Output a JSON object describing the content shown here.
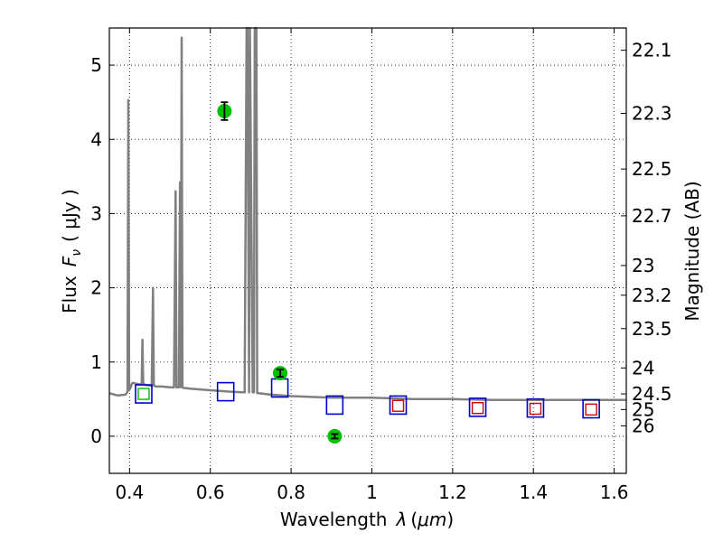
{
  "chart_data": {
    "type": "line",
    "title": "",
    "xlabel": "Wavelength",
    "xlabel_symbol": "λ",
    "xlabel_unit_open": "(",
    "xlabel_unit": "μm",
    "xlabel_unit_close": ")",
    "ylabel": "Flux",
    "ylabel_symbol": "F",
    "ylabel_subscript": "ν",
    "ylabel_unit": "( μJy )",
    "y2label": "Magnitude (AB)",
    "xlim": [
      0.35,
      1.63
    ],
    "ylim": [
      -0.5,
      5.5
    ],
    "x_ticks": [
      "0.4",
      "0.6",
      "0.8",
      "1",
      "1.2",
      "1.4",
      "1.6"
    ],
    "x_tick_values": [
      0.4,
      0.6,
      0.8,
      1.0,
      1.2,
      1.4,
      1.6
    ],
    "y_ticks": [
      "0",
      "1",
      "2",
      "3",
      "4",
      "5"
    ],
    "y_tick_values": [
      0,
      1,
      2,
      3,
      4,
      5
    ],
    "y2_ticks": [
      "22.1",
      "22.3",
      "22.5",
      "22.7",
      "23",
      "23.2",
      "23.5",
      "24",
      "24.5",
      "25",
      "26"
    ],
    "y2_tick_flux": [
      5.2,
      4.35,
      3.6,
      2.97,
      2.3,
      1.9,
      1.45,
      0.92,
      0.57,
      0.36,
      0.14
    ],
    "grid": true,
    "colors": {
      "model": "#808080",
      "observed_points": "#00c000",
      "model_boxes": "#0000cc",
      "red_boxes": "#cc0000",
      "green_box": "#00c000",
      "errorbar": "#000000"
    },
    "series": [
      {
        "kind": "model_spectrum",
        "x": [
          0.35,
          0.37,
          0.39,
          0.395,
          0.397,
          0.399,
          0.403,
          0.405,
          0.408,
          0.415,
          0.425,
          0.43,
          0.432,
          0.434,
          0.436,
          0.44,
          0.455,
          0.458,
          0.46,
          0.462,
          0.465,
          0.48,
          0.5,
          0.51,
          0.514,
          0.516,
          0.518,
          0.522,
          0.525,
          0.527,
          0.529,
          0.531,
          0.533,
          0.536,
          0.55,
          0.6,
          0.65,
          0.685,
          0.69,
          0.692,
          0.696,
          0.698,
          0.705,
          0.708,
          0.71,
          0.714,
          0.716,
          0.72,
          0.75,
          0.8,
          0.85,
          0.9,
          0.95,
          1.0,
          1.05,
          1.1,
          1.2,
          1.3,
          1.4,
          1.5,
          1.63
        ],
        "y": [
          0.58,
          0.55,
          0.56,
          0.6,
          4.53,
          0.62,
          0.66,
          0.7,
          0.72,
          0.71,
          0.7,
          0.7,
          1.3,
          0.7,
          0.7,
          0.69,
          0.68,
          2.0,
          0.68,
          0.68,
          0.67,
          0.67,
          0.66,
          0.66,
          3.3,
          0.66,
          0.66,
          0.66,
          3.42,
          0.66,
          5.37,
          0.66,
          0.65,
          0.65,
          0.64,
          0.62,
          0.6,
          0.59,
          5.5,
          5.5,
          0.59,
          5.5,
          0.59,
          0.59,
          5.5,
          5.5,
          0.58,
          0.58,
          0.56,
          0.54,
          0.53,
          0.52,
          0.52,
          0.52,
          0.51,
          0.5,
          0.5,
          0.49,
          0.49,
          0.49,
          0.49
        ]
      },
      {
        "kind": "observed_photometry",
        "x": [
          0.635,
          0.773,
          0.908
        ],
        "y": [
          4.38,
          0.85,
          0.0
        ],
        "yerr": [
          0.12,
          0.05,
          0.03
        ]
      },
      {
        "kind": "model_photometry_blue",
        "x": [
          0.435,
          0.638,
          0.772,
          0.908,
          1.065,
          1.262,
          1.405,
          1.543
        ],
        "y": [
          0.57,
          0.6,
          0.65,
          0.42,
          0.42,
          0.39,
          0.38,
          0.37
        ]
      },
      {
        "kind": "model_photometry_red",
        "x": [
          1.065,
          1.262,
          1.405,
          1.543
        ],
        "y": [
          0.41,
          0.38,
          0.37,
          0.36
        ]
      },
      {
        "kind": "model_photometry_green",
        "x": [
          0.435
        ],
        "y": [
          0.57
        ]
      }
    ]
  }
}
